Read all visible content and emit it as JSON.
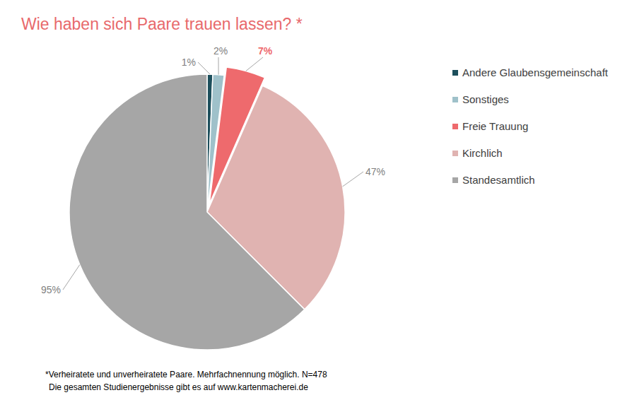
{
  "chart_data": {
    "type": "pie",
    "title": "Wie haben sich Paare trauen lassen? *",
    "categories": [
      "Andere Glaubensgemeinschaft",
      "Sonstiges",
      "Freie Trauung",
      "Kirchlich",
      "Standesamtlich"
    ],
    "values": [
      1,
      2,
      7,
      47,
      95
    ],
    "value_labels": [
      "1%",
      "2%",
      "7%",
      "47%",
      "95%"
    ],
    "colors": [
      "#1d4f5c",
      "#9fc1ca",
      "#ee6a6d",
      "#e0b3b1",
      "#a6a6a6"
    ],
    "data_labels": true,
    "legend": "right",
    "annotations": [
      "*Verheiratete und unverheiratete Paare. Mehrfachnennung möglich. N=478",
      "Die gesamten Studienergebnisse gibt es auf www.kartenmacherei.de"
    ]
  }
}
